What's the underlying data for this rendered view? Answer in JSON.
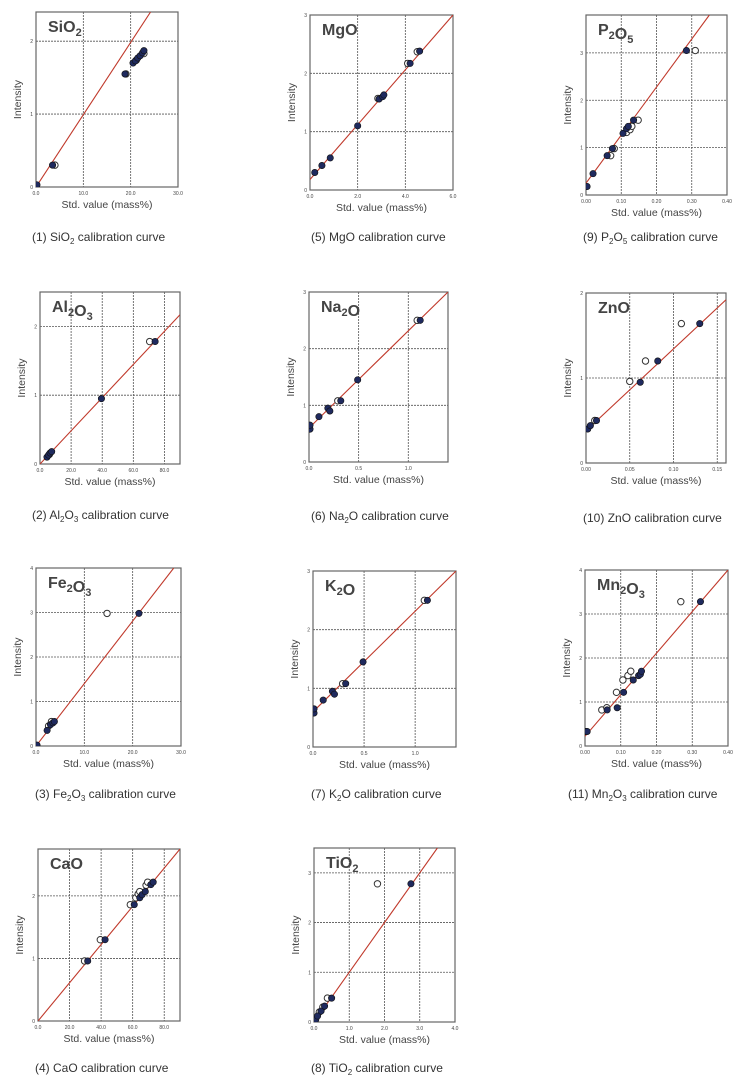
{
  "page": {
    "background": "#ffffff"
  },
  "style": {
    "fit_line": "#c0392b",
    "filled_point": "#1f2a5e",
    "open_point": "#ffffff",
    "grid": "#555555",
    "frame": "#666666"
  },
  "axis_labels": {
    "x": "Std. value (mass%)",
    "y": "Intensity"
  },
  "chart_data": [
    {
      "id": 1,
      "type": "scatter",
      "title": "SiO2",
      "caption_prefix": "(1) ",
      "caption_formula": [
        "Si",
        "O",
        "2"
      ],
      "caption_suffix": " calibration curve",
      "xlabel": "Std. value (mass%)",
      "ylabel": "Intensity",
      "xlim": [
        0,
        30
      ],
      "ylim": [
        0,
        2.4
      ],
      "xticks": [
        "0.0",
        "10.0",
        "20.0",
        "30.0"
      ],
      "yticks": [
        "0",
        "1",
        "2"
      ],
      "xtick_vals": [
        0,
        10,
        20,
        30
      ],
      "ytick_vals": [
        0,
        1,
        2
      ],
      "grid": true,
      "line": [
        [
          0,
          0
        ],
        [
          24.2,
          2.4
        ]
      ],
      "filled": [
        [
          0.2,
          0.03
        ],
        [
          3.5,
          0.3
        ],
        [
          18.8,
          1.55
        ],
        [
          20.5,
          1.7
        ],
        [
          21.0,
          1.73
        ],
        [
          21.5,
          1.77
        ],
        [
          22.0,
          1.8
        ],
        [
          22.5,
          1.84
        ],
        [
          22.8,
          1.87
        ]
      ],
      "open": [
        [
          4.0,
          0.3
        ],
        [
          19.0,
          1.55
        ],
        [
          22.8,
          1.83
        ],
        [
          21.2,
          1.74
        ]
      ]
    },
    {
      "id": 2,
      "type": "scatter",
      "title": "Al2O3",
      "caption_prefix": "(2) ",
      "caption_formula": [
        "Al",
        "2",
        "O",
        "3"
      ],
      "caption_suffix": " calibration curve",
      "xlabel": "Std. value (mass%)",
      "ylabel": "Intensity",
      "xlim": [
        0,
        90
      ],
      "ylim": [
        0,
        2.5
      ],
      "xticks": [
        "0.0",
        "20.0",
        "40.0",
        "60.0",
        "80.0"
      ],
      "yticks": [
        "0",
        "1",
        "2"
      ],
      "xtick_vals": [
        0,
        20,
        40,
        60,
        80
      ],
      "ytick_vals": [
        0,
        1,
        2
      ],
      "grid": true,
      "line": [
        [
          0,
          0
        ],
        [
          90,
          2.17
        ]
      ],
      "filled": [
        [
          4.5,
          0.1
        ],
        [
          5.5,
          0.13
        ],
        [
          6.5,
          0.16
        ],
        [
          7.5,
          0.18
        ],
        [
          39.5,
          0.95
        ],
        [
          74,
          1.78
        ]
      ],
      "open": [
        [
          70.5,
          1.78
        ],
        [
          6,
          0.14
        ]
      ]
    },
    {
      "id": 3,
      "type": "scatter",
      "title": "Fe2O3",
      "caption_prefix": "(3) ",
      "caption_formula": [
        "Fe",
        "2",
        "O",
        "3"
      ],
      "caption_suffix": " calibration curve",
      "xlabel": "Std. value (mass%)",
      "ylabel": "Intensity",
      "xlim": [
        0,
        30
      ],
      "ylim": [
        0,
        4
      ],
      "xticks": [
        "0.0",
        "10.0",
        "20.0",
        "30.0"
      ],
      "yticks": [
        "0",
        "1",
        "2",
        "3",
        "4"
      ],
      "xtick_vals": [
        0,
        10,
        20,
        30
      ],
      "ytick_vals": [
        0,
        1,
        2,
        3,
        4
      ],
      "grid": true,
      "line": [
        [
          0,
          0
        ],
        [
          28.5,
          4.0
        ]
      ],
      "filled": [
        [
          0.2,
          0.02
        ],
        [
          2.3,
          0.35
        ],
        [
          3.0,
          0.48
        ],
        [
          3.5,
          0.52
        ],
        [
          3.8,
          0.55
        ],
        [
          21.3,
          2.98
        ]
      ],
      "open": [
        [
          14.7,
          2.98
        ],
        [
          3.2,
          0.55
        ],
        [
          2.6,
          0.45
        ]
      ]
    },
    {
      "id": 4,
      "type": "scatter",
      "title": "CaO",
      "caption_prefix": "(4) ",
      "caption_formula": [
        "CaO"
      ],
      "caption_suffix": " calibration curve",
      "xlabel": "Std. value (mass%)",
      "ylabel": "Intensity",
      "xlim": [
        0,
        90
      ],
      "ylim": [
        0,
        2.75
      ],
      "xticks": [
        "0.0",
        "20.0",
        "40.0",
        "60.0",
        "80.0"
      ],
      "yticks": [
        "0",
        "1",
        "2"
      ],
      "xtick_vals": [
        0,
        20,
        40,
        60,
        80
      ],
      "ytick_vals": [
        0,
        1,
        2
      ],
      "grid": true,
      "line": [
        [
          0,
          0
        ],
        [
          90,
          2.75
        ]
      ],
      "filled": [
        [
          31.5,
          0.96
        ],
        [
          42.5,
          1.3
        ],
        [
          61.0,
          1.86
        ],
        [
          64.5,
          1.97
        ],
        [
          66.0,
          2.02
        ],
        [
          68.0,
          2.07
        ],
        [
          71.5,
          2.18
        ],
        [
          73.0,
          2.22
        ]
      ],
      "open": [
        [
          29.5,
          0.96
        ],
        [
          39.5,
          1.3
        ],
        [
          58.5,
          1.86
        ],
        [
          62.0,
          1.97
        ],
        [
          63.5,
          2.03
        ],
        [
          64.5,
          2.07
        ],
        [
          68.5,
          2.17
        ],
        [
          69.5,
          2.22
        ]
      ]
    },
    {
      "id": 5,
      "type": "scatter",
      "title": "MgO",
      "caption_prefix": "(5) ",
      "caption_formula": [
        "MgO"
      ],
      "caption_suffix": " calibration curve",
      "xlabel": "Std. value (mass%)",
      "ylabel": "Intensity",
      "xlim": [
        0,
        6
      ],
      "ylim": [
        0,
        3
      ],
      "xticks": [
        "0.0",
        "2.0",
        "4.0",
        "6.0"
      ],
      "yticks": [
        "0",
        "1",
        "2",
        "3"
      ],
      "xtick_vals": [
        0,
        2,
        4,
        6
      ],
      "ytick_vals": [
        0,
        1,
        2,
        3
      ],
      "grid": true,
      "line": [
        [
          0,
          0.18
        ],
        [
          6,
          3.0
        ]
      ],
      "filled": [
        [
          0.2,
          0.3
        ],
        [
          0.5,
          0.42
        ],
        [
          0.85,
          0.55
        ],
        [
          2.0,
          1.1
        ],
        [
          2.9,
          1.56
        ],
        [
          3.05,
          1.6
        ],
        [
          3.1,
          1.63
        ],
        [
          4.2,
          2.17
        ],
        [
          4.6,
          2.38
        ]
      ],
      "open": [
        [
          2.85,
          1.57
        ],
        [
          4.1,
          2.17
        ],
        [
          4.5,
          2.37
        ]
      ]
    },
    {
      "id": 6,
      "type": "scatter",
      "title": "Na2O",
      "caption_prefix": "(6) ",
      "caption_formula": [
        "Na",
        "2",
        "O"
      ],
      "caption_suffix": " calibration curve",
      "xlabel": "Std. value (mass%)",
      "ylabel": "Intensity",
      "xlim": [
        0,
        1.4
      ],
      "ylim": [
        0,
        3
      ],
      "xticks": [
        "0.0",
        "0.5",
        "1.0"
      ],
      "yticks": [
        "0",
        "1",
        "2",
        "3"
      ],
      "xtick_vals": [
        0,
        0.5,
        1.0
      ],
      "ytick_vals": [
        0,
        1,
        2,
        3
      ],
      "grid": true,
      "line": [
        [
          0,
          0.6
        ],
        [
          1.4,
          3.0
        ]
      ],
      "filled": [
        [
          0.01,
          0.58
        ],
        [
          0.01,
          0.65
        ],
        [
          0.1,
          0.8
        ],
        [
          0.19,
          0.95
        ],
        [
          0.21,
          0.9
        ],
        [
          0.32,
          1.08
        ],
        [
          0.49,
          1.45
        ],
        [
          1.12,
          2.5
        ]
      ],
      "open": [
        [
          0.29,
          1.08
        ],
        [
          1.09,
          2.5
        ]
      ]
    },
    {
      "id": 7,
      "type": "scatter",
      "title": "K2O",
      "caption_prefix": "(7) ",
      "caption_formula": [
        "K",
        "2",
        "O"
      ],
      "caption_suffix": " calibration curve",
      "xlabel": "Std. value (mass%)",
      "ylabel": "Intensity",
      "xlim": [
        0,
        1.4
      ],
      "ylim": [
        0,
        3
      ],
      "xticks": [
        "0.0",
        "0.5",
        "1.0"
      ],
      "yticks": [
        "0",
        "1",
        "2",
        "3"
      ],
      "xtick_vals": [
        0,
        0.5,
        1.0
      ],
      "ytick_vals": [
        0,
        1,
        2,
        3
      ],
      "grid": true,
      "line": [
        [
          0,
          0.6
        ],
        [
          1.4,
          3.0
        ]
      ],
      "filled": [
        [
          0.01,
          0.58
        ],
        [
          0.01,
          0.65
        ],
        [
          0.1,
          0.8
        ],
        [
          0.19,
          0.95
        ],
        [
          0.21,
          0.9
        ],
        [
          0.32,
          1.08
        ],
        [
          0.49,
          1.45
        ],
        [
          1.12,
          2.5
        ]
      ],
      "open": [
        [
          0.29,
          1.08
        ],
        [
          1.09,
          2.5
        ]
      ]
    },
    {
      "id": 8,
      "type": "scatter",
      "title": "TiO2",
      "caption_prefix": "(8) ",
      "caption_formula": [
        "Ti",
        "O",
        "2"
      ],
      "caption_suffix": " calibration curve",
      "xlabel": "Std. value (mass%)",
      "ylabel": "Intensity",
      "xlim": [
        0,
        4
      ],
      "ylim": [
        0,
        3.5
      ],
      "xticks": [
        "0.0",
        "1.0",
        "2.0",
        "3.0",
        "4.0"
      ],
      "yticks": [
        "0",
        "1",
        "2",
        "3"
      ],
      "xtick_vals": [
        0,
        1,
        2,
        3,
        4
      ],
      "ytick_vals": [
        0,
        1,
        2,
        3
      ],
      "grid": true,
      "line": [
        [
          0,
          0
        ],
        [
          3.5,
          3.5
        ]
      ],
      "filled": [
        [
          0.05,
          0.05
        ],
        [
          0.1,
          0.12
        ],
        [
          0.2,
          0.22
        ],
        [
          0.3,
          0.32
        ],
        [
          0.5,
          0.48
        ],
        [
          2.75,
          2.78
        ]
      ],
      "open": [
        [
          1.8,
          2.78
        ],
        [
          0.38,
          0.48
        ],
        [
          0.25,
          0.3
        ],
        [
          0.15,
          0.2
        ]
      ]
    },
    {
      "id": 9,
      "type": "scatter",
      "title": "P2O5",
      "caption_prefix": "(9) ",
      "caption_formula": [
        "P",
        "2",
        "O",
        "5"
      ],
      "caption_suffix": " calibration curve",
      "xlabel": "Std. value (mass%)",
      "ylabel": "Intensity",
      "xlim": [
        0,
        0.4
      ],
      "ylim": [
        0,
        3.8
      ],
      "xticks": [
        "0.00",
        "0.10",
        "0.20",
        "0.30",
        "0.40"
      ],
      "yticks": [
        "0",
        "1",
        "2",
        "3"
      ],
      "xtick_vals": [
        0,
        0.1,
        0.2,
        0.3,
        0.4
      ],
      "ytick_vals": [
        0,
        1,
        2,
        3
      ],
      "grid": true,
      "line": [
        [
          0,
          0.25
        ],
        [
          0.35,
          3.8
        ]
      ],
      "filled": [
        [
          0.003,
          0.18
        ],
        [
          0.02,
          0.45
        ],
        [
          0.06,
          0.83
        ],
        [
          0.075,
          0.98
        ],
        [
          0.105,
          1.3
        ],
        [
          0.115,
          1.4
        ],
        [
          0.12,
          1.45
        ],
        [
          0.135,
          1.58
        ],
        [
          0.285,
          3.05
        ]
      ],
      "open": [
        [
          0.07,
          0.83
        ],
        [
          0.08,
          0.98
        ],
        [
          0.115,
          1.32
        ],
        [
          0.125,
          1.38
        ],
        [
          0.13,
          1.45
        ],
        [
          0.148,
          1.58
        ],
        [
          0.31,
          3.05
        ]
      ]
    },
    {
      "id": 10,
      "type": "scatter",
      "title": "ZnO",
      "caption_prefix": "(10) ",
      "caption_formula": [
        "ZnO"
      ],
      "caption_suffix": " calibration curve",
      "xlabel": "Std. value (mass%)",
      "ylabel": "Intensity",
      "xlim": [
        0,
        0.16
      ],
      "ylim": [
        0,
        2
      ],
      "xticks": [
        "0.00",
        "0.05",
        "0.10",
        "0.15"
      ],
      "yticks": [
        "0",
        "1",
        "2"
      ],
      "xtick_vals": [
        0,
        0.05,
        0.1,
        0.15
      ],
      "ytick_vals": [
        0,
        1,
        2
      ],
      "grid": true,
      "line": [
        [
          0,
          0.38
        ],
        [
          0.16,
          1.92
        ]
      ],
      "filled": [
        [
          0.002,
          0.4
        ],
        [
          0.005,
          0.44
        ],
        [
          0.012,
          0.5
        ],
        [
          0.062,
          0.95
        ],
        [
          0.082,
          1.2
        ],
        [
          0.13,
          1.64
        ]
      ],
      "open": [
        [
          0.01,
          0.5
        ],
        [
          0.05,
          0.96
        ],
        [
          0.068,
          1.2
        ],
        [
          0.109,
          1.64
        ]
      ]
    },
    {
      "id": 11,
      "type": "scatter",
      "title": "Mn2O3",
      "caption_prefix": "(11) ",
      "caption_formula": [
        "Mn",
        "2",
        "O",
        "3"
      ],
      "caption_suffix": " calibration curve",
      "xlabel": "Std. value (mass%)",
      "ylabel": "Intensity",
      "xlim": [
        0,
        0.4
      ],
      "ylim": [
        0,
        4
      ],
      "xticks": [
        "0.00",
        "0.10",
        "0.20",
        "0.30",
        "0.40"
      ],
      "yticks": [
        "0",
        "1",
        "2",
        "3",
        "4"
      ],
      "xtick_vals": [
        0,
        0.1,
        0.2,
        0.3,
        0.4
      ],
      "ytick_vals": [
        0,
        1,
        2,
        3,
        4
      ],
      "grid": true,
      "line": [
        [
          0,
          0.22
        ],
        [
          0.4,
          4.0
        ]
      ],
      "filled": [
        [
          0.003,
          0.33
        ],
        [
          0.006,
          0.33
        ],
        [
          0.062,
          0.82
        ],
        [
          0.09,
          0.87
        ],
        [
          0.108,
          1.22
        ],
        [
          0.135,
          1.5
        ],
        [
          0.15,
          1.6
        ],
        [
          0.155,
          1.63
        ],
        [
          0.158,
          1.7
        ],
        [
          0.323,
          3.28
        ]
      ],
      "open": [
        [
          0.047,
          0.82
        ],
        [
          0.061,
          0.87
        ],
        [
          0.088,
          1.22
        ],
        [
          0.106,
          1.5
        ],
        [
          0.12,
          1.6
        ],
        [
          0.128,
          1.7
        ],
        [
          0.268,
          3.28
        ]
      ]
    }
  ]
}
